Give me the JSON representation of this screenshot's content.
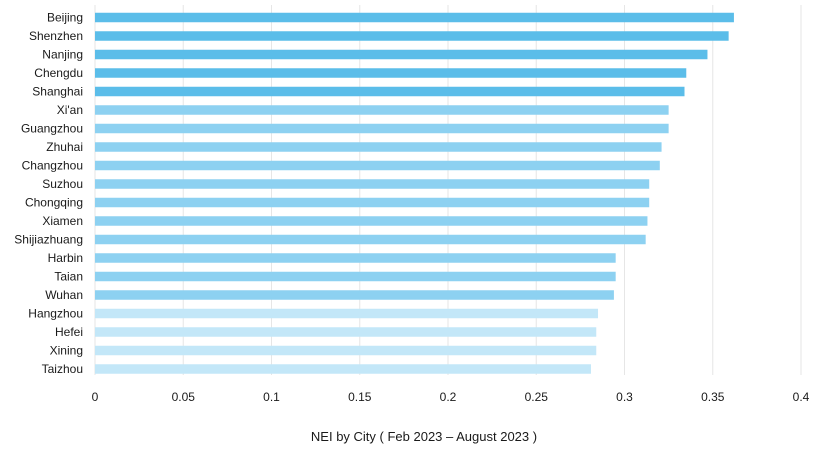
{
  "chart_data": {
    "type": "bar",
    "orientation": "horizontal",
    "title": "",
    "xlabel": "NEI by City ( Feb 2023 – August 2023 )",
    "ylabel": "",
    "xlim": [
      0,
      0.4
    ],
    "x_ticks": [
      "0",
      "0.05",
      "0.1",
      "0.15",
      "0.2",
      "0.25",
      "0.3",
      "0.35",
      "0.4"
    ],
    "grid": "vertical",
    "legend": "none",
    "categories": [
      "Beijing",
      "Shenzhen",
      "Nanjing",
      "Chengdu",
      "Shanghai",
      "Xi'an",
      "Guangzhou",
      "Zhuhai",
      "Changzhou",
      "Suzhou",
      "Chongqing",
      "Xiamen",
      "Shijiazhuang",
      "Harbin",
      "Taian",
      "Wuhan",
      "Hangzhou",
      "Hefei",
      "Xining",
      "Taizhou"
    ],
    "values": [
      0.362,
      0.359,
      0.347,
      0.335,
      0.334,
      0.325,
      0.325,
      0.321,
      0.32,
      0.314,
      0.314,
      0.313,
      0.312,
      0.295,
      0.295,
      0.294,
      0.285,
      0.284,
      0.284,
      0.281
    ],
    "colors": [
      "#5bbde9",
      "#5bbde9",
      "#5bbde9",
      "#5bbde9",
      "#5bbde9",
      "#8dd1f1",
      "#8dd1f1",
      "#8dd1f1",
      "#8dd1f1",
      "#8dd1f1",
      "#8dd1f1",
      "#8dd1f1",
      "#8dd1f1",
      "#8dd1f1",
      "#8dd1f1",
      "#8dd1f1",
      "#c3e7f8",
      "#c3e7f8",
      "#c3e7f8",
      "#c3e7f8"
    ],
    "grid_color": "#e6e6e6"
  }
}
